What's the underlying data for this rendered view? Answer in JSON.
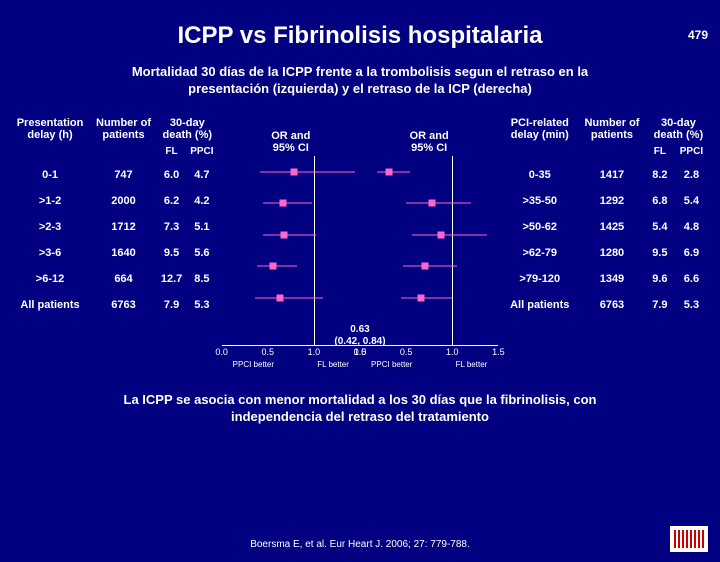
{
  "page_number": "479",
  "title": "ICPP vs Fibrinolisis hospitalaria",
  "subtitle_line1": "Mortalidad 30 días de la ICPP frente a la trombolisis segun el retraso en la",
  "subtitle_line2": "presentación (izquierda) y el retraso de la ICP (derecha)",
  "left_table": {
    "headers": {
      "c1a": "Presentation",
      "c1b": "delay (h)",
      "c2a": "Number of",
      "c2b": "patients",
      "c3a": "30-day",
      "c3b": "death (%)"
    },
    "sub": {
      "fl": "FL",
      "ppci": "PPCI"
    },
    "rows": [
      {
        "cat": "0-1",
        "n": "747",
        "fl": "6.0",
        "ppci": "4.7"
      },
      {
        "cat": ">1-2",
        "n": "2000",
        "fl": "6.2",
        "ppci": "4.2"
      },
      {
        "cat": ">2-3",
        "n": "1712",
        "fl": "7.3",
        "ppci": "5.1"
      },
      {
        "cat": ">3-6",
        "n": "1640",
        "fl": "9.5",
        "ppci": "5.6"
      },
      {
        "cat": ">6-12",
        "n": "664",
        "fl": "12.7",
        "ppci": "8.5"
      },
      {
        "cat": "All patients",
        "n": "6763",
        "fl": "7.9",
        "ppci": "5.3"
      }
    ]
  },
  "right_table": {
    "headers": {
      "c1a": "PCI-related",
      "c1b": "delay (min)",
      "c2a": "Number of",
      "c2b": "patients",
      "c3a": "30-day",
      "c3b": "death (%)"
    },
    "sub": {
      "fl": "FL",
      "ppci": "PPCI"
    },
    "rows": [
      {
        "cat": "0-35",
        "n": "1417",
        "fl": "8.2",
        "ppci": "2.8"
      },
      {
        "cat": ">35-50",
        "n": "1292",
        "fl": "6.8",
        "ppci": "5.4"
      },
      {
        "cat": ">50-62",
        "n": "1425",
        "fl": "5.4",
        "ppci": "4.8"
      },
      {
        "cat": ">62-79",
        "n": "1280",
        "fl": "9.5",
        "ppci": "6.9"
      },
      {
        "cat": ">79-120",
        "n": "1349",
        "fl": "9.6",
        "ppci": "6.6"
      },
      {
        "cat": "All patients",
        "n": "6763",
        "fl": "7.9",
        "ppci": "5.3"
      }
    ]
  },
  "forest": {
    "panel_head_l1": "OR and",
    "panel_head_l2": "95% CI",
    "xmin": 0.0,
    "xmax": 1.5,
    "ref_line": 1.0,
    "ticks": [
      "0.0",
      "0.5",
      "1.0",
      "1.5"
    ],
    "ppci_label": "PPCI better",
    "fl_label": "FL better",
    "point_color": "#ff66cc",
    "left_points": [
      {
        "or": 0.78,
        "lo": 0.42,
        "hi": 1.45
      },
      {
        "or": 0.67,
        "lo": 0.45,
        "hi": 0.98
      },
      {
        "or": 0.68,
        "lo": 0.45,
        "hi": 1.02
      },
      {
        "or": 0.56,
        "lo": 0.38,
        "hi": 0.82
      },
      {
        "or": 0.63,
        "lo": 0.36,
        "hi": 1.1
      }
    ],
    "right_points": [
      {
        "or": 0.31,
        "lo": 0.18,
        "hi": 0.54
      },
      {
        "or": 0.78,
        "lo": 0.5,
        "hi": 1.2
      },
      {
        "or": 0.88,
        "lo": 0.56,
        "hi": 1.38
      },
      {
        "or": 0.7,
        "lo": 0.47,
        "hi": 1.05
      },
      {
        "or": 0.66,
        "lo": 0.44,
        "hi": 1.0
      }
    ],
    "pooled_label_1": "0.63",
    "pooled_label_2": "(0.42, 0.84)"
  },
  "footer_l1": "La ICPP se asocia con menor mortalidad a los 30 días que la fibrinolisis, con",
  "footer_l2": "independencia del retraso del tratamiento",
  "citation": "Boersma E, et al. Eur Heart J. 2006; 27: 779-788."
}
